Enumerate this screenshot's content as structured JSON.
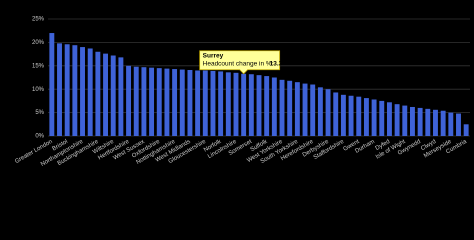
{
  "chart_data": {
    "type": "bar",
    "color": "#3f63d8",
    "grid": true,
    "ylim": [
      0,
      25
    ],
    "yticks": [
      {
        "value": 0,
        "label": "0%"
      },
      {
        "value": 5,
        "label": "5%"
      },
      {
        "value": 10,
        "label": "10%"
      },
      {
        "value": 15,
        "label": "15%"
      },
      {
        "value": 20,
        "label": "20%"
      },
      {
        "value": 25,
        "label": "25%"
      }
    ],
    "categories": [
      "Greater London",
      null,
      "Bristol",
      null,
      "Northamptonshire",
      null,
      "Buckinghamshire",
      null,
      "Wiltshire",
      null,
      "Hertfordshire",
      null,
      "West Sussex",
      null,
      "Oxfordshire",
      null,
      "Nottinghamshire",
      null,
      "West Midlands",
      null,
      "Gloucestershire",
      null,
      "Norfolk",
      null,
      "Lincolnshire",
      null,
      "Somerset",
      null,
      "Suffolk",
      null,
      "West Yorkshire",
      null,
      "South Yorkshire",
      null,
      "Herefordshire",
      null,
      "Derbyshire",
      null,
      "Staffordshire",
      null,
      "Gwent",
      null,
      "Durham",
      null,
      "Dyfed",
      null,
      "Isle of Wight",
      null,
      "Gwynedd",
      null,
      "Clwyd",
      null,
      "Merseyside",
      null,
      "Cumbria"
    ],
    "values": [
      22.0,
      19.8,
      19.6,
      19.4,
      19.0,
      18.7,
      18.0,
      17.6,
      17.2,
      16.8,
      15.0,
      14.8,
      14.7,
      14.6,
      14.5,
      14.4,
      14.3,
      14.2,
      14.1,
      14.0,
      14.0,
      13.9,
      13.8,
      13.6,
      13.5,
      13.3,
      13.2,
      13.0,
      12.8,
      12.5,
      12.0,
      11.8,
      11.5,
      11.2,
      11.0,
      10.4,
      10.0,
      9.3,
      8.8,
      8.6,
      8.4,
      8.1,
      7.8,
      7.5,
      7.2,
      6.8,
      6.5,
      6.2,
      6.0,
      5.8,
      5.6,
      5.4,
      5.0,
      4.8,
      2.5
    ],
    "tooltip": {
      "title": "Surrey",
      "label": "Headcount change in %:",
      "value": 13.3,
      "index": 25
    }
  }
}
